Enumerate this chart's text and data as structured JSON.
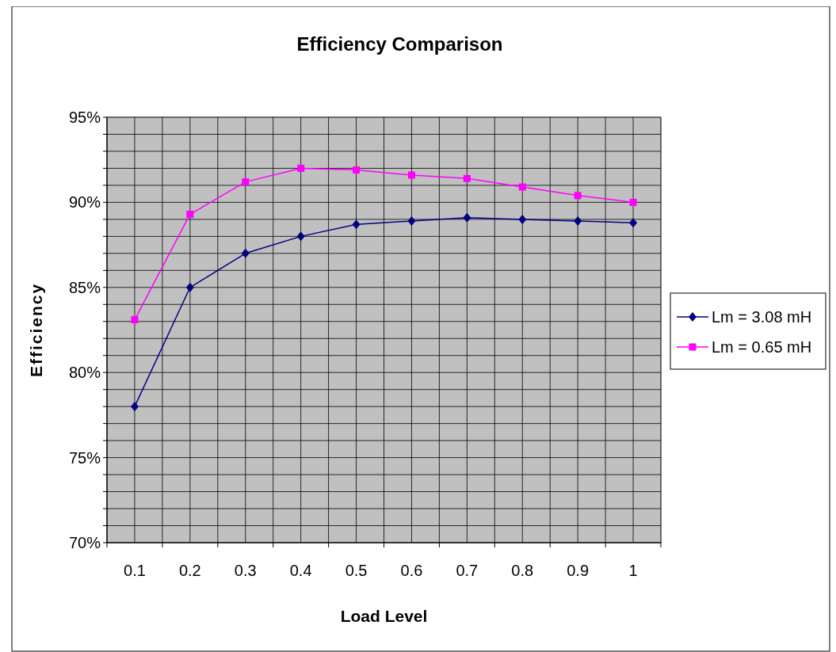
{
  "chart_data": {
    "type": "line",
    "title": "Efficiency Comparison",
    "xlabel": "Load Level",
    "ylabel": "Efficiency",
    "categories": [
      "0.1",
      "0.2",
      "0.3",
      "0.4",
      "0.5",
      "0.6",
      "0.7",
      "0.8",
      "0.9",
      "1"
    ],
    "series": [
      {
        "name": "Lm = 3.08 mH",
        "color": "#000080",
        "marker": "diamond",
        "values": [
          78.0,
          85.0,
          87.0,
          88.0,
          88.7,
          88.9,
          89.1,
          89.0,
          88.9,
          88.8
        ]
      },
      {
        "name": "Lm = 0.65 mH",
        "color": "#ff00ff",
        "marker": "square",
        "values": [
          83.1,
          89.3,
          91.2,
          92.0,
          91.9,
          91.6,
          91.4,
          90.9,
          90.4,
          90.0
        ]
      }
    ],
    "ylim": [
      70,
      95
    ],
    "yticks": [
      {
        "value": 70,
        "label": "70%"
      },
      {
        "value": 71,
        "label": null
      },
      {
        "value": 72,
        "label": null
      },
      {
        "value": 73,
        "label": null
      },
      {
        "value": 74,
        "label": null
      },
      {
        "value": 75,
        "label": "75%"
      },
      {
        "value": 76,
        "label": null
      },
      {
        "value": 77,
        "label": null
      },
      {
        "value": 78,
        "label": null
      },
      {
        "value": 79,
        "label": null
      },
      {
        "value": 80,
        "label": "80%"
      },
      {
        "value": 81,
        "label": null
      },
      {
        "value": 82,
        "label": null
      },
      {
        "value": 83,
        "label": null
      },
      {
        "value": 84,
        "label": null
      },
      {
        "value": 85,
        "label": "85%"
      },
      {
        "value": 86,
        "label": null
      },
      {
        "value": 87,
        "label": null
      },
      {
        "value": 88,
        "label": null
      },
      {
        "value": 89,
        "label": null
      },
      {
        "value": 90,
        "label": "90%"
      },
      {
        "value": 91,
        "label": null
      },
      {
        "value": 92,
        "label": null
      },
      {
        "value": 93,
        "label": null
      },
      {
        "value": 94,
        "label": null
      },
      {
        "value": 95,
        "label": "95%"
      }
    ],
    "grid": true,
    "legend": "right",
    "line_style": "solid"
  }
}
